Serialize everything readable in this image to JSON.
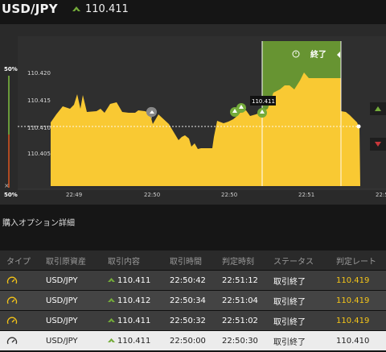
{
  "header": {
    "pair": "USD/JPY",
    "rate": "110.411"
  },
  "chart_data": {
    "type": "area",
    "ylabels": [
      "110.420",
      "110.415",
      "110.410",
      "110.405"
    ],
    "xlabels": [
      "22:49",
      "22:50",
      "22:50",
      "22:51",
      "22:5"
    ],
    "current_label": "110.411",
    "end_label": "終了",
    "gauge_top": "50%",
    "gauge_bottom": "50%",
    "gauge_close": "×"
  },
  "section": {
    "title": "購入オプション詳細"
  },
  "table": {
    "headers": [
      "タイプ",
      "取引原資産",
      "取引内容",
      "取引時間",
      "判定時刻",
      "ステータス",
      "判定レート"
    ],
    "rows": [
      {
        "asset": "USD/JPY",
        "rate": "110.411",
        "time": "22:50:42",
        "judge": "22:51:12",
        "status": "取引終了",
        "final": "110.419"
      },
      {
        "asset": "USD/JPY",
        "rate": "110.412",
        "time": "22:50:34",
        "judge": "22:51:04",
        "status": "取引終了",
        "final": "110.419"
      },
      {
        "asset": "USD/JPY",
        "rate": "110.411",
        "time": "22:50:32",
        "judge": "22:51:02",
        "status": "取引終了",
        "final": "110.419"
      },
      {
        "asset": "USD/JPY",
        "rate": "110.411",
        "time": "22:50:00",
        "judge": "22:50:30",
        "status": "取引終了",
        "final": "110.410"
      }
    ]
  },
  "colors": {
    "area": "#f9c933",
    "green": "#74ab3a",
    "down": "#c8373a"
  }
}
